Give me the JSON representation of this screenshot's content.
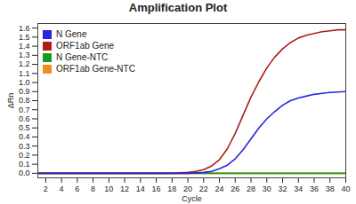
{
  "chart_data": {
    "type": "line",
    "title": "Amplification Plot",
    "x_label": "Cycle",
    "y_label": "ΔRn",
    "x": [
      1,
      2,
      3,
      4,
      5,
      6,
      7,
      8,
      9,
      10,
      11,
      12,
      13,
      14,
      15,
      16,
      17,
      18,
      19,
      20,
      21,
      22,
      23,
      24,
      25,
      26,
      27,
      28,
      29,
      30,
      31,
      32,
      33,
      34,
      35,
      36,
      37,
      38,
      39,
      40
    ],
    "series": [
      {
        "name": "N Gene",
        "color": "#2626dc",
        "values": [
          0,
          0,
          0,
          0,
          0,
          0,
          0,
          0,
          0,
          0,
          0,
          0,
          0,
          0,
          0,
          0,
          0,
          0,
          0,
          0,
          0.005,
          0.01,
          0.02,
          0.05,
          0.09,
          0.16,
          0.26,
          0.38,
          0.5,
          0.6,
          0.68,
          0.75,
          0.8,
          0.83,
          0.85,
          0.87,
          0.88,
          0.89,
          0.895,
          0.9
        ]
      },
      {
        "name": "ORF1ab Gene",
        "color": "#b01c1c",
        "values": [
          0,
          0,
          0,
          0,
          0,
          0,
          0,
          0,
          0,
          0,
          0,
          0,
          0,
          0,
          0,
          0,
          0,
          0,
          0.005,
          0.01,
          0.02,
          0.04,
          0.08,
          0.15,
          0.27,
          0.44,
          0.64,
          0.84,
          1.01,
          1.16,
          1.28,
          1.37,
          1.44,
          1.49,
          1.52,
          1.54,
          1.56,
          1.57,
          1.58,
          1.58
        ]
      },
      {
        "name": "N Gene-NTC",
        "color": "#1a9a1a",
        "values": [
          0,
          0,
          0,
          0,
          0,
          0,
          0,
          0,
          0,
          0,
          0,
          0,
          0,
          0,
          0,
          0,
          0,
          0,
          0,
          0,
          0,
          0,
          0,
          0,
          0,
          0,
          0,
          0,
          0,
          0,
          0,
          0,
          0,
          0,
          0,
          0,
          0,
          0,
          0,
          0
        ]
      },
      {
        "name": "ORF1ab Gene-NTC",
        "color": "#f28c1e",
        "values": [
          0,
          0,
          0,
          0,
          0,
          0,
          0,
          0,
          0,
          0,
          0,
          0,
          0,
          0,
          0,
          0,
          0,
          0,
          0,
          0,
          0,
          0,
          0,
          0,
          0,
          0,
          0,
          0,
          0,
          0,
          0,
          0,
          0,
          0,
          0,
          0,
          0,
          0,
          0,
          0
        ]
      }
    ],
    "xlim": [
      1,
      40
    ],
    "xticks": [
      2,
      4,
      6,
      8,
      10,
      12,
      14,
      16,
      18,
      20,
      22,
      24,
      26,
      28,
      30,
      32,
      34,
      36,
      38,
      40
    ],
    "ylim": [
      -0.05,
      1.65
    ],
    "yticks": [
      {
        "value": 0,
        "label": "0.0"
      },
      {
        "value": 0.1,
        "label": "0.1"
      },
      {
        "value": 0.2,
        "label": "0.2"
      },
      {
        "value": 0.3,
        "label": "0.3"
      },
      {
        "value": 0.4,
        "label": "0.4"
      },
      {
        "value": 0.5,
        "label": "0.5"
      },
      {
        "value": 0.6,
        "label": "0.6"
      },
      {
        "value": 0.7,
        "label": "0.7"
      },
      {
        "value": 0.8,
        "label": "0.8"
      },
      {
        "value": 0.9,
        "label": "0.9"
      },
      {
        "value": 1.0,
        "label": "1.0"
      },
      {
        "value": 1.1,
        "label": "1.1"
      },
      {
        "value": 1.2,
        "label": "1.2"
      },
      {
        "value": 1.3,
        "label": "1.3"
      },
      {
        "value": 1.4,
        "label": "1.4"
      },
      {
        "value": 1.5,
        "label": "1.5"
      },
      {
        "value": 1.6,
        "label": "1.6"
      }
    ],
    "grid": false,
    "legend": "top-left"
  }
}
